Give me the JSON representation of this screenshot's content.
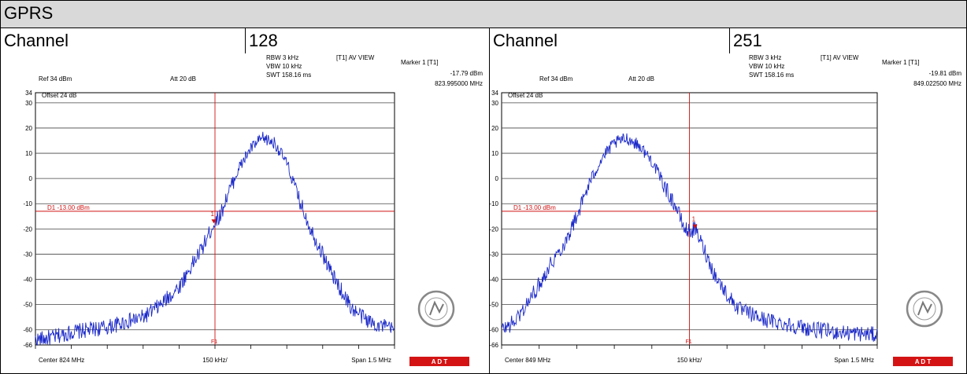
{
  "title": "GPRS",
  "panels": [
    {
      "channel_label": "Channel",
      "channel_value": "128",
      "ref": "Ref 34 dBm",
      "att": "Att  20 dB",
      "offset": "Offset 24 dB",
      "rbw": "RBW 3 kHz",
      "vbw": "VBW 10 kHz",
      "swt": "SWT 158.16 ms",
      "trace_mode": "[T1] AV VIEW",
      "marker_title": "Marker 1 [T1]",
      "marker_level": "-17.79 dBm",
      "marker_freq": "823.995000 MHz",
      "marker_number": "1",
      "display_line": "D1 -13.00 dBm",
      "f1_label": "F1",
      "center": "Center 824 MHz",
      "per_div": "150 kHz/",
      "span": "Span 1.5 MHz",
      "badge": "A  D  T",
      "logo_text": "BUREAU VERITAS"
    },
    {
      "channel_label": "Channel",
      "channel_value": "251",
      "ref": "Ref 34 dBm",
      "att": "Att  20 dB",
      "offset": "Offset 24 dB",
      "rbw": "RBW 3 kHz",
      "vbw": "VBW 10 kHz",
      "swt": "SWT 158.16 ms",
      "trace_mode": "[T1] AV VIEW",
      "marker_title": "Marker 1 [T1]",
      "marker_level": "-19.81 dBm",
      "marker_freq": "849.022500 MHz",
      "marker_number": "1",
      "display_line": "D1 -13.00 dBm",
      "f1_label": "F1",
      "center": "Center 849 MHz",
      "per_div": "150 kHz/",
      "span": "Span 1.5 MHz",
      "badge": "A  D  T",
      "logo_text": "BUREAU VERITAS"
    }
  ],
  "chart_data": [
    {
      "type": "line",
      "title": "Channel 128",
      "x_unit": "MHz",
      "y_unit": "dBm",
      "xlim": [
        823.25,
        824.75
      ],
      "ylim": [
        -66,
        34
      ],
      "y_tick_labels": [
        "34",
        "30",
        "20",
        "10",
        "0",
        "-10",
        "-20",
        "-30",
        "-40",
        "-50",
        "-60",
        "-66"
      ],
      "grid": true,
      "display_line_dbm": -13,
      "marker": {
        "x": 823.995,
        "y": -17.79
      },
      "f1_x": 824.0,
      "series": [
        {
          "color": "#1a28c8",
          "x": [
            823.25,
            823.325,
            823.4,
            823.475,
            823.55,
            823.625,
            823.7,
            823.775,
            823.85,
            823.9,
            823.95,
            823.975,
            823.995,
            824.025,
            824.05,
            824.1,
            824.15,
            824.2,
            824.25,
            824.3,
            824.35,
            824.4,
            824.45,
            824.5,
            824.575,
            824.65,
            824.75
          ],
          "values": [
            -64,
            -63,
            -61,
            -60,
            -59,
            -57,
            -55,
            -50,
            -43,
            -35,
            -27,
            -22,
            -18,
            -14,
            -7,
            4,
            12,
            16,
            14,
            6,
            -8,
            -20,
            -30,
            -40,
            -52,
            -57,
            -60
          ]
        }
      ]
    },
    {
      "type": "line",
      "title": "Channel 251",
      "x_unit": "MHz",
      "y_unit": "dBm",
      "xlim": [
        848.25,
        849.75
      ],
      "ylim": [
        -66,
        34
      ],
      "y_tick_labels": [
        "34",
        "30",
        "20",
        "10",
        "0",
        "-10",
        "-20",
        "-30",
        "-40",
        "-50",
        "-60",
        "-66"
      ],
      "grid": true,
      "display_line_dbm": -13,
      "marker": {
        "x": 849.0225,
        "y": -19.81
      },
      "f1_x": 849.0,
      "series": [
        {
          "color": "#1a28c8",
          "x": [
            848.25,
            848.3,
            848.35,
            848.4,
            848.45,
            848.5,
            848.55,
            848.6,
            848.65,
            848.7,
            848.75,
            848.8,
            848.85,
            848.9,
            848.95,
            848.98,
            849.0,
            849.0225,
            849.05,
            849.1,
            849.15,
            849.2,
            849.3,
            849.4,
            849.5,
            849.6,
            849.75
          ],
          "values": [
            -60,
            -57,
            -50,
            -42,
            -33,
            -26,
            -15,
            -2,
            8,
            14,
            16,
            13,
            7,
            -3,
            -12,
            -20,
            -21,
            -20,
            -26,
            -38,
            -46,
            -52,
            -56,
            -58,
            -60,
            -61,
            -62
          ]
        }
      ]
    }
  ]
}
